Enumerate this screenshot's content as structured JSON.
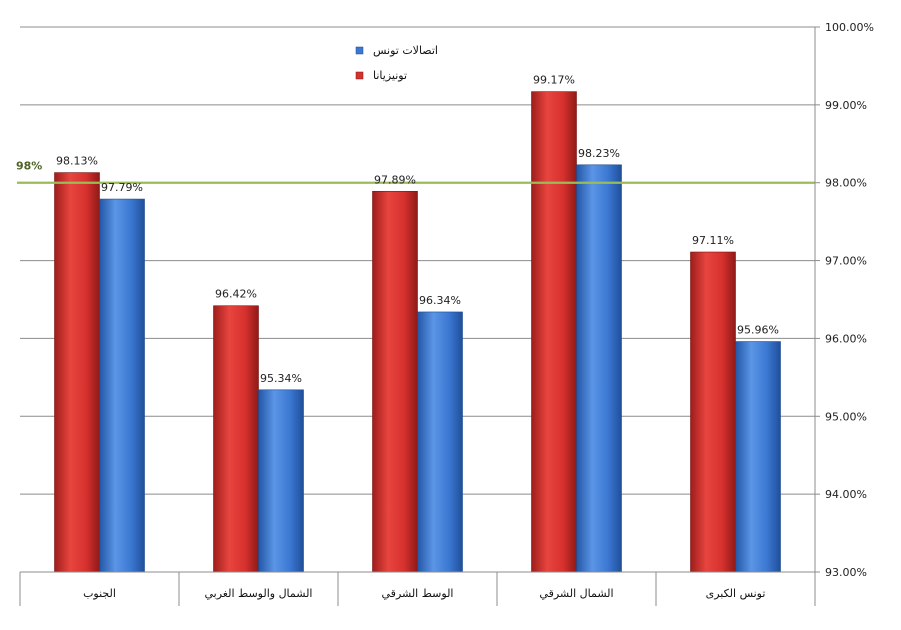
{
  "chart_data": {
    "type": "bar",
    "categories": [
      "الجنوب",
      "الشمال والوسط الغربي",
      "الوسط الشرقي",
      "الشمال الشرقي",
      "تونس الكبرى"
    ],
    "series": [
      {
        "name": "تونيزيانا",
        "values": [
          98.13,
          96.42,
          97.89,
          99.17,
          97.11
        ],
        "labels": [
          "98.13%",
          "96.42%",
          "97.89%",
          "99.17%",
          "97.11%"
        ],
        "color": "#d7312e"
      },
      {
        "name": "اتصالات تونس",
        "values": [
          97.79,
          95.34,
          96.34,
          98.23,
          95.96
        ],
        "labels": [
          "97.79%",
          "95.34%",
          "96.34%",
          "98.23%",
          "95.96%"
        ],
        "color": "#3b78d2"
      }
    ],
    "ylim": [
      93,
      100
    ],
    "yticks": [
      100,
      99,
      98,
      97,
      96,
      95,
      94,
      93
    ],
    "ytick_labels": [
      "100.00%",
      "99.00%",
      "98.00%",
      "97.00%",
      "96.00%",
      "95.00%",
      "94.00%",
      "93.00%"
    ],
    "y_axis_side": "right",
    "grid": true,
    "legend_position": "top-center",
    "reference_line": {
      "value": 98,
      "label": "98%",
      "color": "#9bbb59"
    },
    "title": "",
    "xlabel": "",
    "ylabel": ""
  }
}
